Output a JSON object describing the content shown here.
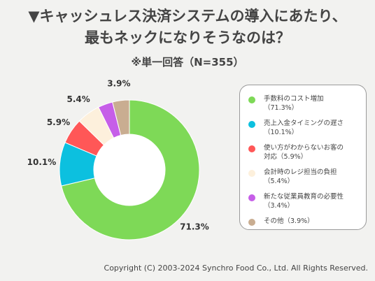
{
  "title_line1": "▼キャッシュレス決済システムの導入にあたり、",
  "title_line2": "最もネックになりそうなのは？",
  "subtitle": "※単一回答（N=355）",
  "copyright": "Copyright (C) 2003-2024  Synchro Food Co., Ltd. All Rights Reserved.",
  "chart_data": {
    "type": "pie",
    "donut": true,
    "categories": [
      "手数料のコスト増加",
      "売上入金タイミングの遅さ",
      "使い方がわからないお客の対応",
      "会計時のレジ担当の負担",
      "新たな従業員教育の必要性",
      "その他"
    ],
    "values": [
      71.3,
      10.1,
      5.9,
      5.4,
      3.4,
      3.9
    ],
    "value_labels": [
      "71.3%",
      "10.1%",
      "5.9%",
      "5.4%",
      "",
      "3.9%"
    ],
    "colors": [
      "#7ed957",
      "#0cc0df",
      "#ff5757",
      "#fdf0dc",
      "#c65ee8",
      "#c9ad91"
    ],
    "legend_position": "right"
  },
  "legend": {
    "items": [
      {
        "line1": "手数料のコスト増加",
        "line2": "（71.3%）"
      },
      {
        "line1": "売上入金タイミングの遅さ",
        "line2": "（10.1%）"
      },
      {
        "line1": "使い方がわからないお客の",
        "line2": "対応（5.9%）"
      },
      {
        "line1": "会計時のレジ担当の負担",
        "line2": "（5.4%）"
      },
      {
        "line1": "新たな従業員教育の必要性",
        "line2": "（3.4%）"
      },
      {
        "line1": "その他（3.9%）",
        "line2": ""
      }
    ]
  }
}
